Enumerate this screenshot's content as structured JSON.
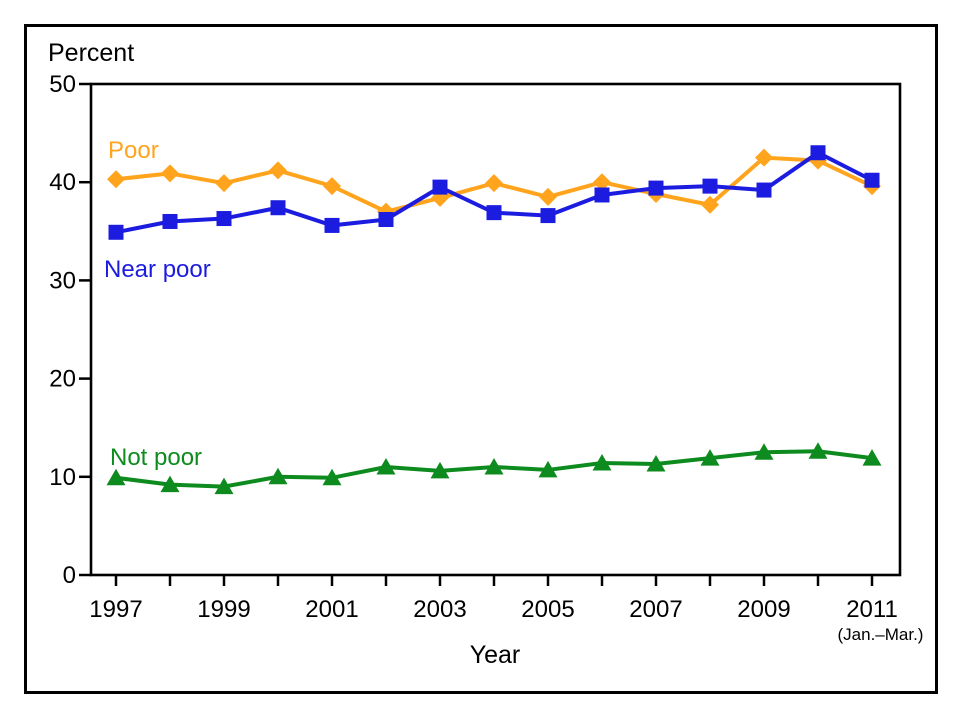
{
  "figure": {
    "y_axis_title": "Percent",
    "x_axis_title": "Year",
    "x_axis_note": "(Jan.–Mar.)"
  },
  "chart_data": {
    "type": "line",
    "ylabel": "Percent",
    "xlabel": "Year",
    "ylim": [
      0,
      50
    ],
    "yticks": [
      0,
      10,
      20,
      30,
      40,
      50
    ],
    "years": [
      1997,
      1998,
      1999,
      2000,
      2001,
      2002,
      2003,
      2004,
      2005,
      2006,
      2007,
      2008,
      2009,
      2010,
      2011
    ],
    "xtick_label_years": [
      1997,
      1999,
      2001,
      2003,
      2005,
      2007,
      2009,
      2011
    ],
    "last_point_note": "(Jan.–Mar.)",
    "grid": false,
    "legend_position": "inline-labels",
    "series": [
      {
        "name": "Poor",
        "color": "#ffa41c",
        "marker": "diamond",
        "values": [
          40.3,
          40.9,
          39.9,
          41.2,
          39.6,
          37.0,
          38.4,
          39.9,
          38.5,
          40.0,
          38.8,
          37.7,
          42.5,
          42.2,
          39.6
        ]
      },
      {
        "name": "Near poor",
        "color": "#1c1ce0",
        "marker": "square",
        "values": [
          34.9,
          36.0,
          36.3,
          37.4,
          35.6,
          36.2,
          39.5,
          36.9,
          36.6,
          38.7,
          39.4,
          39.6,
          39.2,
          43.0,
          40.2
        ]
      },
      {
        "name": "Not poor",
        "color": "#0e8b1e",
        "marker": "triangle",
        "values": [
          9.9,
          9.2,
          9.0,
          10.0,
          9.9,
          11.0,
          10.6,
          11.0,
          10.7,
          11.4,
          11.3,
          11.9,
          12.5,
          12.6,
          11.9
        ]
      }
    ]
  }
}
